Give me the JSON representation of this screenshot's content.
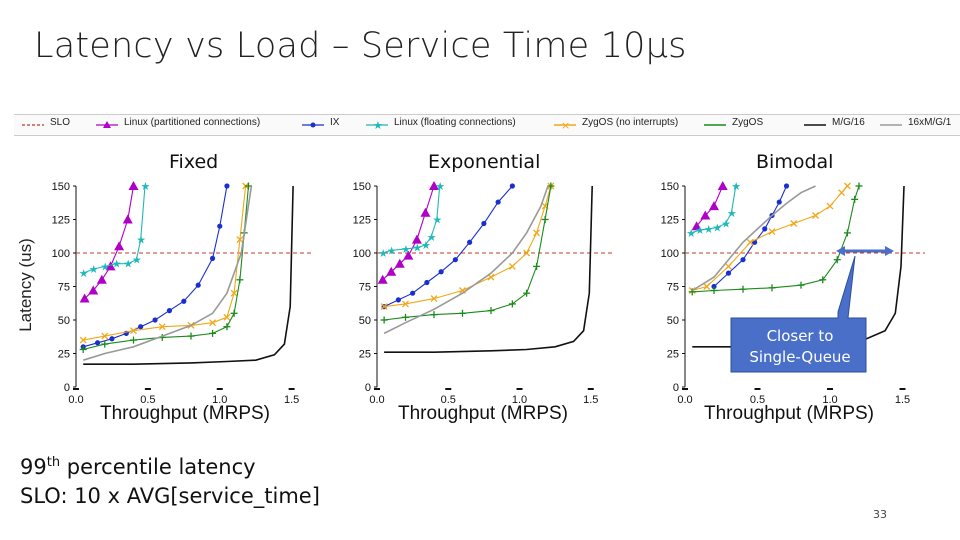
{
  "title": "Latency vs Load – Service Time 10µs",
  "legend": [
    {
      "label": "SLO",
      "color": "#c0392b",
      "style": "dashed",
      "marker": "none"
    },
    {
      "label": "Linux (partitioned connections)",
      "color": "#b000c8",
      "style": "solid",
      "marker": "triangle"
    },
    {
      "label": "IX",
      "color": "#1a2fd0",
      "style": "solid",
      "marker": "dot"
    },
    {
      "label": "Linux (floating connections)",
      "color": "#20b8b8",
      "style": "solid",
      "marker": "star"
    },
    {
      "label": "ZygOS (no interrupts)",
      "color": "#f0a818",
      "style": "solid",
      "marker": "x"
    },
    {
      "label": "ZygOS",
      "color": "#1a8a1a",
      "style": "solid",
      "marker": "plus"
    },
    {
      "label": "M/G/16",
      "color": "#111111",
      "style": "solid",
      "marker": "none"
    },
    {
      "label": "16xM/G/1",
      "color": "#999999",
      "style": "solid",
      "marker": "none"
    }
  ],
  "y_axis_title": "Latency (us)",
  "footnote": {
    "line1_pre": "99",
    "line1_sup": "th",
    "line1_post": " percentile latency",
    "line2": "SLO: 10 x AVG[service_time]"
  },
  "callout": {
    "line1": "Closer to",
    "line2": "Single-Queue"
  },
  "page_number": "33",
  "chart_data": [
    {
      "type": "line",
      "title": "Fixed",
      "xlabel": "Throughput (MRPS)",
      "ylabel": "Latency (us)",
      "xlim": [
        0,
        1.6
      ],
      "ylim": [
        0,
        150
      ],
      "xticks": [
        "0.0",
        "0.5",
        "1.0",
        "1.5"
      ],
      "yticks": [
        "0",
        "25",
        "50",
        "75",
        "100",
        "125",
        "150"
      ],
      "slo": 100,
      "series": [
        {
          "name": "Linux (partitioned connections)",
          "x": [
            0.06,
            0.12,
            0.18,
            0.24,
            0.3,
            0.36,
            0.4
          ],
          "y": [
            66,
            72,
            80,
            90,
            105,
            125,
            150
          ]
        },
        {
          "name": "IX",
          "x": [
            0.05,
            0.15,
            0.25,
            0.35,
            0.45,
            0.55,
            0.65,
            0.75,
            0.85,
            0.95,
            1.0,
            1.05
          ],
          "y": [
            30,
            33,
            36,
            40,
            45,
            50,
            57,
            64,
            76,
            96,
            120,
            150
          ]
        },
        {
          "name": "Linux (floating connections)",
          "x": [
            0.05,
            0.12,
            0.2,
            0.28,
            0.36,
            0.42,
            0.45,
            0.48
          ],
          "y": [
            85,
            88,
            90,
            92,
            92,
            95,
            110,
            150
          ]
        },
        {
          "name": "ZygOS (no interrupts)",
          "x": [
            0.05,
            0.2,
            0.4,
            0.6,
            0.8,
            0.95,
            1.05,
            1.1,
            1.14,
            1.18
          ],
          "y": [
            35,
            38,
            42,
            45,
            46,
            48,
            52,
            70,
            110,
            150
          ]
        },
        {
          "name": "ZygOS",
          "x": [
            0.05,
            0.2,
            0.4,
            0.6,
            0.8,
            0.95,
            1.05,
            1.1,
            1.14,
            1.17,
            1.2
          ],
          "y": [
            28,
            32,
            35,
            37,
            38,
            40,
            45,
            55,
            80,
            115,
            150
          ]
        },
        {
          "name": "M/G/16",
          "x": [
            0.05,
            0.4,
            0.8,
            1.05,
            1.25,
            1.38,
            1.45,
            1.49,
            1.51
          ],
          "y": [
            17,
            17,
            18,
            19,
            20,
            24,
            32,
            60,
            150
          ]
        },
        {
          "name": "16xM/G/1",
          "x": [
            0.05,
            0.2,
            0.4,
            0.6,
            0.8,
            0.95,
            1.05,
            1.15,
            1.22
          ],
          "y": [
            20,
            25,
            30,
            38,
            46,
            55,
            70,
            100,
            150
          ]
        }
      ]
    },
    {
      "type": "line",
      "title": "Exponential",
      "xlabel": "Throughput (MRPS)",
      "ylabel": "Latency (us)",
      "xlim": [
        0,
        1.6
      ],
      "ylim": [
        0,
        150
      ],
      "xticks": [
        "0.0",
        "0.5",
        "1.0",
        "1.5"
      ],
      "yticks": [
        "0",
        "25",
        "50",
        "75",
        "100",
        "125",
        "150"
      ],
      "slo": 100,
      "series": [
        {
          "name": "Linux (partitioned connections)",
          "x": [
            0.04,
            0.1,
            0.16,
            0.22,
            0.28,
            0.34,
            0.4
          ],
          "y": [
            80,
            86,
            92,
            98,
            110,
            130,
            150
          ]
        },
        {
          "name": "IX",
          "x": [
            0.05,
            0.15,
            0.25,
            0.35,
            0.45,
            0.55,
            0.65,
            0.75,
            0.85,
            0.95
          ],
          "y": [
            60,
            65,
            70,
            78,
            86,
            95,
            108,
            122,
            138,
            150
          ]
        },
        {
          "name": "Linux (floating connections)",
          "x": [
            0.04,
            0.1,
            0.2,
            0.28,
            0.34,
            0.38,
            0.42,
            0.44
          ],
          "y": [
            100,
            102,
            103,
            104,
            106,
            112,
            125,
            150
          ]
        },
        {
          "name": "ZygOS (no interrupts)",
          "x": [
            0.05,
            0.2,
            0.4,
            0.6,
            0.8,
            0.95,
            1.05,
            1.12,
            1.18,
            1.22
          ],
          "y": [
            60,
            62,
            66,
            72,
            82,
            90,
            100,
            115,
            135,
            150
          ]
        },
        {
          "name": "ZygOS",
          "x": [
            0.05,
            0.2,
            0.4,
            0.6,
            0.8,
            0.95,
            1.05,
            1.12,
            1.18,
            1.22
          ],
          "y": [
            50,
            52,
            54,
            55,
            57,
            62,
            70,
            90,
            125,
            150
          ]
        },
        {
          "name": "M/G/16",
          "x": [
            0.05,
            0.4,
            0.8,
            1.05,
            1.25,
            1.38,
            1.45,
            1.49,
            1.51
          ],
          "y": [
            26,
            26,
            27,
            28,
            30,
            34,
            42,
            70,
            150
          ]
        },
        {
          "name": "16xM/G/1",
          "x": [
            0.05,
            0.2,
            0.4,
            0.6,
            0.8,
            0.95,
            1.05,
            1.15,
            1.2
          ],
          "y": [
            40,
            48,
            58,
            70,
            85,
            100,
            115,
            135,
            150
          ]
        }
      ]
    },
    {
      "type": "line",
      "title": "Bimodal",
      "xlabel": "Throughput (MRPS)",
      "ylabel": "Latency (us)",
      "xlim": [
        0,
        1.6
      ],
      "ylim": [
        0,
        150
      ],
      "xticks": [
        "0.0",
        "0.5",
        "1.0",
        "1.5"
      ],
      "yticks": [
        "0",
        "25",
        "50",
        "75",
        "100",
        "125",
        "150"
      ],
      "slo": 100,
      "series": [
        {
          "name": "Linux (partitioned connections)",
          "x": [
            0.08,
            0.14,
            0.2,
            0.26
          ],
          "y": [
            120,
            128,
            135,
            150
          ]
        },
        {
          "name": "IX",
          "x": [
            0.2,
            0.3,
            0.4,
            0.48,
            0.55,
            0.6,
            0.65,
            0.7
          ],
          "y": [
            75,
            85,
            95,
            108,
            118,
            128,
            138,
            150
          ]
        },
        {
          "name": "Linux (floating connections)",
          "x": [
            0.04,
            0.1,
            0.16,
            0.22,
            0.28,
            0.32,
            0.35
          ],
          "y": [
            115,
            117,
            118,
            119,
            122,
            130,
            150
          ]
        },
        {
          "name": "ZygOS (no interrupts)",
          "x": [
            0.05,
            0.15,
            0.3,
            0.45,
            0.6,
            0.75,
            0.9,
            1.0,
            1.08,
            1.12
          ],
          "y": [
            72,
            75,
            90,
            108,
            116,
            122,
            128,
            135,
            145,
            150
          ]
        },
        {
          "name": "ZygOS",
          "x": [
            0.05,
            0.2,
            0.4,
            0.6,
            0.8,
            0.95,
            1.05,
            1.12,
            1.17,
            1.2
          ],
          "y": [
            71,
            72,
            73,
            74,
            76,
            80,
            95,
            115,
            140,
            150
          ]
        },
        {
          "name": "M/G/16",
          "x": [
            0.05,
            0.4,
            0.8,
            1.05,
            1.25,
            1.38,
            1.45,
            1.49,
            1.51
          ],
          "y": [
            30,
            30,
            31,
            33,
            36,
            42,
            55,
            90,
            150
          ]
        },
        {
          "name": "16xM/G/1",
          "x": [
            0.05,
            0.2,
            0.3,
            0.4,
            0.5,
            0.6,
            0.7,
            0.8,
            0.9
          ],
          "y": [
            72,
            82,
            95,
            108,
            118,
            128,
            137,
            145,
            150
          ]
        }
      ]
    }
  ]
}
